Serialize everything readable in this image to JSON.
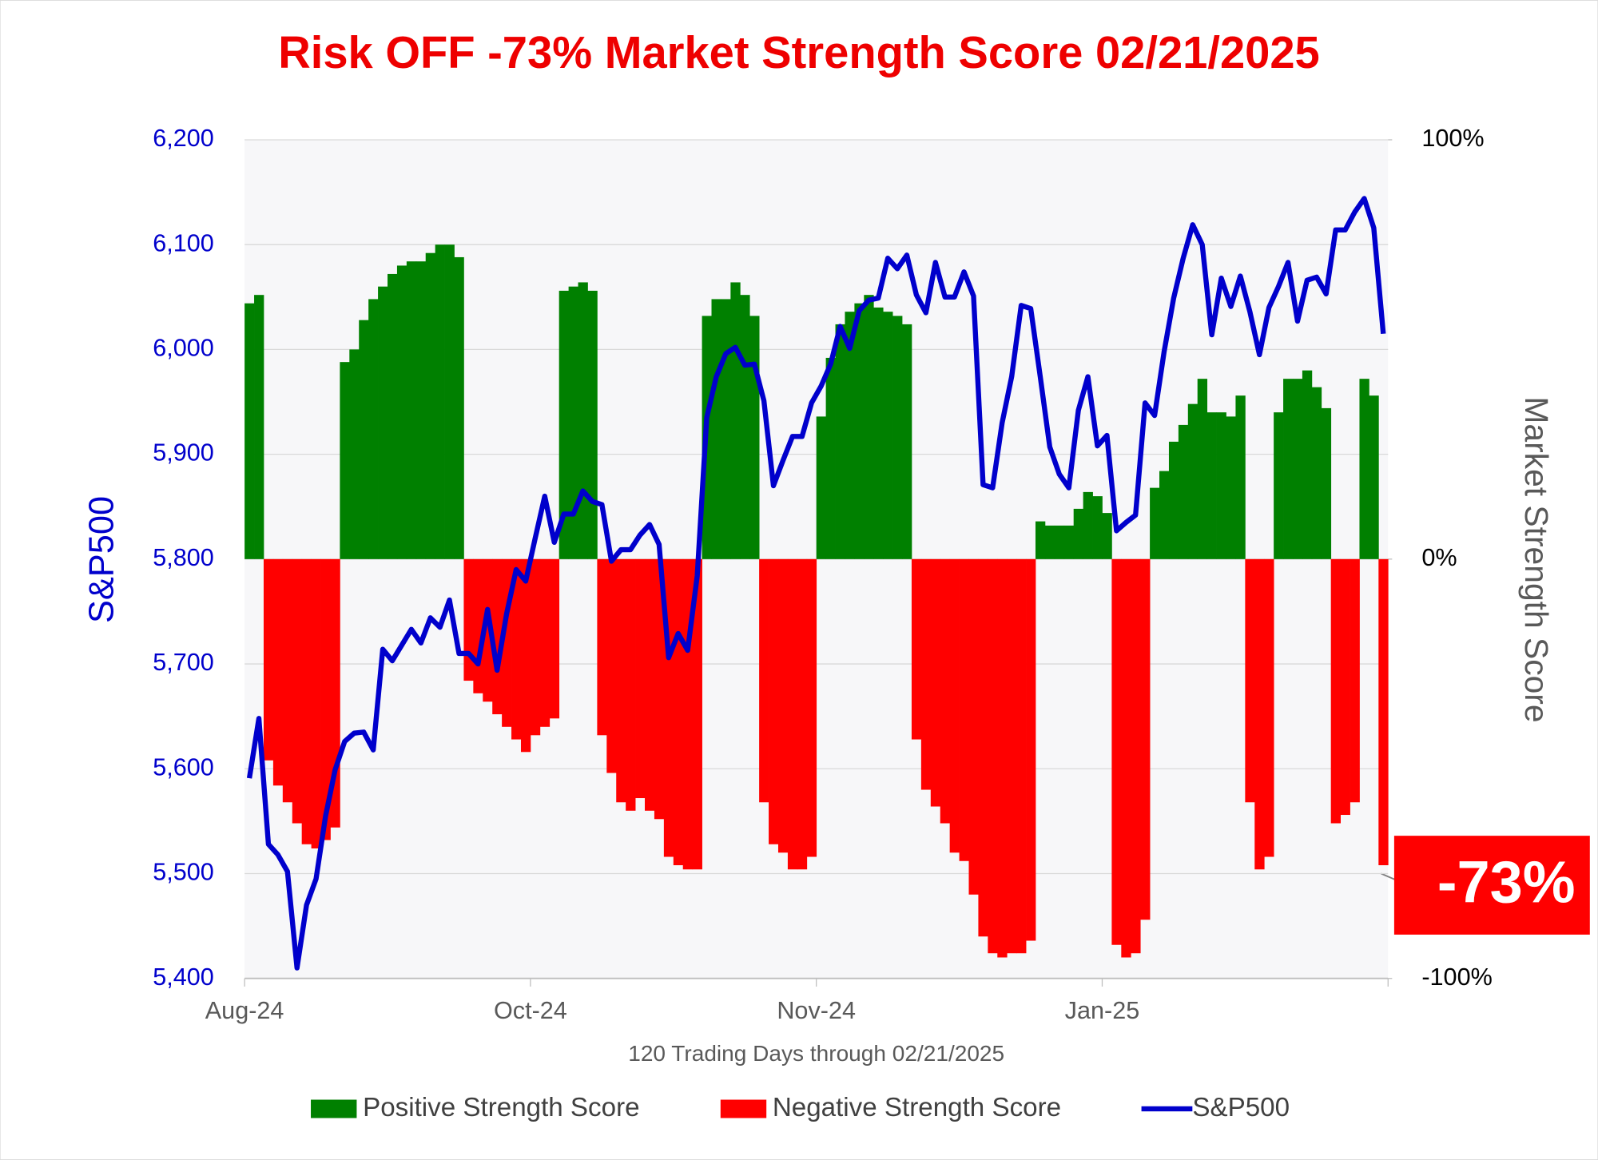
{
  "chart_data": {
    "type": "bar",
    "title": "Risk OFF -73% Market Strength Score 02/21/2025",
    "x_label": "120 Trading Days through 02/21/2025",
    "y_label": "S&P500",
    "y2_label": "Market Strength Score",
    "annotation": "-73%",
    "categories": [
      "Aug-24",
      null,
      null,
      null,
      null,
      null,
      null,
      null,
      null,
      null,
      null,
      null,
      null,
      null,
      null,
      null,
      null,
      null,
      null,
      null,
      null,
      null,
      null,
      null,
      null,
      null,
      null,
      null,
      null,
      null,
      "Oct-24",
      null,
      null,
      null,
      null,
      null,
      null,
      null,
      null,
      null,
      null,
      null,
      null,
      null,
      null,
      null,
      null,
      null,
      null,
      null,
      null,
      null,
      null,
      null,
      null,
      null,
      null,
      null,
      null,
      null,
      "Nov-24",
      null,
      null,
      null,
      null,
      null,
      null,
      null,
      null,
      null,
      null,
      null,
      null,
      null,
      null,
      null,
      null,
      null,
      null,
      null,
      null,
      null,
      null,
      null,
      null,
      null,
      null,
      null,
      null,
      null,
      "Jan-25",
      null,
      null,
      null,
      null,
      null,
      null,
      null,
      null,
      null,
      null,
      null,
      null,
      null,
      null,
      null,
      null,
      null,
      null,
      null,
      null,
      null,
      null,
      null,
      null,
      null,
      null,
      null,
      null,
      null
    ],
    "ylim": [
      5400,
      6200
    ],
    "yticks": [
      {
        "value": 5400,
        "label": "5,400"
      },
      {
        "value": 5500,
        "label": "5,500"
      },
      {
        "value": 5600,
        "label": "5,600"
      },
      {
        "value": 5700,
        "label": "5,700"
      },
      {
        "value": 5800,
        "label": "5,800"
      },
      {
        "value": 5900,
        "label": "5,900"
      },
      {
        "value": 6000,
        "label": "6,000"
      },
      {
        "value": 6100,
        "label": "6,100"
      },
      {
        "value": 6200,
        "label": "6,200"
      }
    ],
    "y2lim": [
      -100,
      100
    ],
    "y2ticks": [
      {
        "value": -100,
        "label": "-100%"
      },
      {
        "value": 0,
        "label": "0%"
      },
      {
        "value": 100,
        "label": "100%"
      }
    ],
    "grid": true,
    "legend": "bottom",
    "series": [
      {
        "name": "Positive Strength Score",
        "color": "#008000",
        "type": "bar",
        "axis": "y2",
        "values": [
          61,
          63,
          null,
          null,
          null,
          null,
          null,
          null,
          null,
          null,
          47,
          50,
          57,
          62,
          65,
          68,
          70,
          71,
          71,
          73,
          75,
          75,
          72,
          null,
          null,
          null,
          null,
          null,
          null,
          null,
          null,
          null,
          null,
          64,
          65,
          66,
          64,
          null,
          null,
          null,
          null,
          null,
          null,
          null,
          null,
          null,
          null,
          null,
          58,
          62,
          62,
          66,
          63,
          58,
          null,
          null,
          null,
          null,
          null,
          null,
          34,
          48,
          56,
          59,
          61,
          63,
          60,
          59,
          58,
          56,
          null,
          null,
          null,
          null,
          null,
          null,
          null,
          null,
          null,
          null,
          null,
          null,
          null,
          9,
          8,
          8,
          8,
          12,
          16,
          15,
          11,
          null,
          null,
          null,
          null,
          17,
          21,
          28,
          32,
          37,
          43,
          35,
          35,
          34,
          39,
          null,
          null,
          null,
          35,
          43,
          43,
          45,
          41,
          36,
          null,
          null,
          null,
          43,
          39,
          null
        ]
      },
      {
        "name": "Negative Strength Score",
        "color": "#ff0000",
        "type": "bar",
        "axis": "y2",
        "values": [
          null,
          null,
          -48,
          -54,
          -58,
          -63,
          -68,
          -69,
          -67,
          -64,
          null,
          null,
          null,
          null,
          null,
          null,
          null,
          null,
          null,
          null,
          null,
          null,
          null,
          -29,
          -32,
          -34,
          -37,
          -40,
          -43,
          -46,
          -42,
          -40,
          -38,
          null,
          null,
          null,
          null,
          -42,
          -51,
          -58,
          -60,
          -57,
          -60,
          -62,
          -71,
          -73,
          -74,
          -74,
          null,
          null,
          null,
          null,
          null,
          null,
          -58,
          -68,
          -70,
          -74,
          -74,
          -71,
          null,
          null,
          null,
          null,
          null,
          null,
          null,
          null,
          null,
          null,
          -43,
          -55,
          -59,
          -63,
          -70,
          -72,
          -80,
          -90,
          -94,
          -95,
          -94,
          -94,
          -91,
          null,
          null,
          null,
          null,
          null,
          null,
          null,
          null,
          -92,
          -95,
          -94,
          -86,
          null,
          null,
          null,
          null,
          null,
          null,
          null,
          null,
          null,
          null,
          -58,
          -74,
          -71,
          null,
          null,
          null,
          null,
          null,
          null,
          -63,
          -61,
          -58,
          null,
          null,
          -73
        ]
      },
      {
        "name": "S&P500",
        "color": "#0000cc",
        "type": "line",
        "values": [
          5591,
          5648,
          5528,
          5518,
          5502,
          5410,
          5470,
          5495,
          5555,
          5599,
          5626,
          5634,
          5635,
          5618,
          5714,
          5703,
          5718,
          5733,
          5720,
          5744,
          5735,
          5761,
          5710,
          5710,
          5700,
          5752,
          5694,
          5748,
          5790,
          5779,
          5820,
          5860,
          5816,
          5843,
          5843,
          5865,
          5855,
          5852,
          5798,
          5809,
          5809,
          5823,
          5833,
          5814,
          5706,
          5729,
          5713,
          5784,
          5935,
          5974,
          5996,
          6002,
          5985,
          5986,
          5951,
          5870,
          5894,
          5917,
          5917,
          5949,
          5965,
          5986,
          6022,
          6001,
          6037,
          6047,
          6049,
          6087,
          6077,
          6090,
          6052,
          6035,
          6083,
          6050,
          6050,
          6074,
          6051,
          5871,
          5868,
          5930,
          5974,
          6042,
          6039,
          5974,
          5907,
          5881,
          5868,
          5942,
          5974,
          5908,
          5918,
          5827,
          5835,
          5842,
          5949,
          5937,
          5998,
          6049,
          6087,
          6119,
          6100,
          6014,
          6068,
          6041,
          6070,
          6036,
          5995,
          6040,
          6060,
          6083,
          6027,
          6066,
          6069,
          6053,
          6114,
          6114,
          6131,
          6144,
          6116,
          6015
        ]
      }
    ]
  }
}
